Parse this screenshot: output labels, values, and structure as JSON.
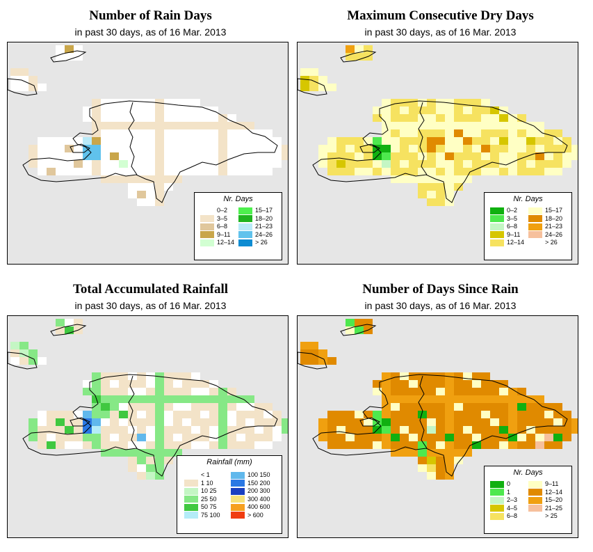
{
  "panels": [
    {
      "title": "Number of Rain Days",
      "subtitle": "in past 30 days, as of  16 Mar. 2013",
      "legend_title": "Nr. Days",
      "legend": [
        {
          "label": "0–2",
          "color": "#ffffff"
        },
        {
          "label": "3–5",
          "color": "#f3e3c8"
        },
        {
          "label": "6–8",
          "color": "#e0c79c"
        },
        {
          "label": "9–11",
          "color": "#c9a64a"
        },
        {
          "label": "12–14",
          "color": "#d2ffd2"
        },
        {
          "label": "15–17",
          "color": "#4ef04e"
        },
        {
          "label": "18–20",
          "color": "#20b420"
        },
        {
          "label": "21–23",
          "color": "#b9eaf8"
        },
        {
          "label": "24–26",
          "color": "#60c2ec"
        },
        {
          "label": "> 26",
          "color": "#0e8cd2"
        }
      ]
    },
    {
      "title": "Maximum Consecutive Dry Days",
      "subtitle": "in past 30 days, as of  16 Mar. 2013",
      "legend_title": "Nr. Days",
      "legend": [
        {
          "label": "0–2",
          "color": "#10b010"
        },
        {
          "label": "3–5",
          "color": "#4ee84e"
        },
        {
          "label": "6–8",
          "color": "#c4f6c4"
        },
        {
          "label": "9–11",
          "color": "#d6c600"
        },
        {
          "label": "12–14",
          "color": "#f6e260"
        },
        {
          "label": "15–17",
          "color": "#ffffc4"
        },
        {
          "label": "18–20",
          "color": "#e08a00"
        },
        {
          "label": "21–23",
          "color": "#f0a010"
        },
        {
          "label": "24–26",
          "color": "#f6c09c"
        },
        {
          "label": "> 26",
          "color": "#ffffff"
        }
      ]
    },
    {
      "title": "Total Accumulated Rainfall",
      "subtitle": "in past 30 days, as of  16 Mar. 2013",
      "legend_title": "Rainfall (mm)",
      "legend": [
        {
          "label": "< 1",
          "color": "#ffffff"
        },
        {
          "label": "1    10",
          "color": "#f3e3c8"
        },
        {
          "label": "10    25",
          "color": "#c4f6c4"
        },
        {
          "label": "25    50",
          "color": "#86e886"
        },
        {
          "label": "50    75",
          "color": "#40c840"
        },
        {
          "label": "75   100",
          "color": "#b4ecf8"
        },
        {
          "label": "100   150",
          "color": "#60b8ec"
        },
        {
          "label": "150   200",
          "color": "#2a78e4"
        },
        {
          "label": "200   300",
          "color": "#1a40c0"
        },
        {
          "label": "300   400",
          "color": "#f6e27a"
        },
        {
          "label": "400   600",
          "color": "#f6a020"
        },
        {
          "label": "> 600",
          "color": "#f03c10"
        }
      ]
    },
    {
      "title": "Number of Days Since Rain",
      "subtitle": "in past 30 days, as of  16 Mar. 2013",
      "legend_title": "Nr. Days",
      "legend": [
        {
          "label": "0",
          "color": "#10b010"
        },
        {
          "label": "1",
          "color": "#4ee84e"
        },
        {
          "label": "2–3",
          "color": "#c4f6c4"
        },
        {
          "label": "4–5",
          "color": "#d6c600"
        },
        {
          "label": "6–8",
          "color": "#f6e260"
        },
        {
          "label": "9–11",
          "color": "#ffffc4"
        },
        {
          "label": "12–14",
          "color": "#e08a00"
        },
        {
          "label": "15–20",
          "color": "#f0a010"
        },
        {
          "label": "21–25",
          "color": "#f6c09c"
        },
        {
          "label": "> 25",
          "color": "#ffffff"
        }
      ]
    }
  ]
}
